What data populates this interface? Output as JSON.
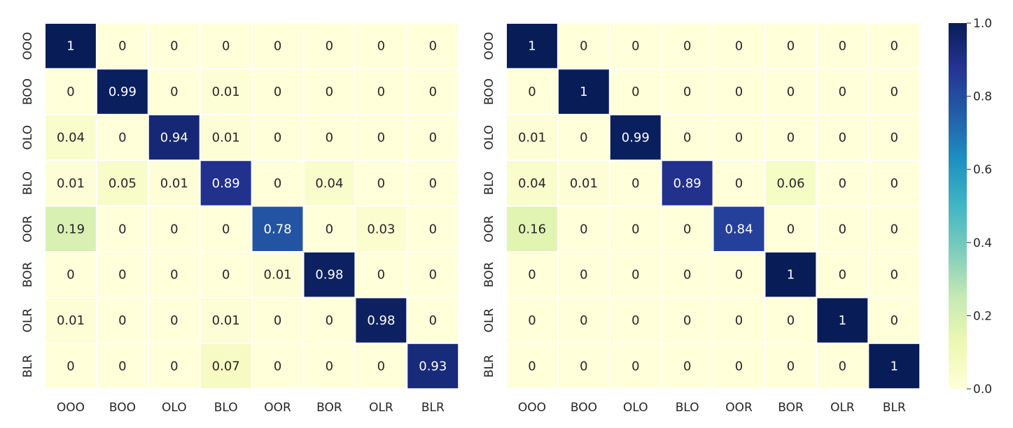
{
  "chart_data": [
    {
      "type": "heatmap",
      "x_categories": [
        "OOO",
        "BOO",
        "OLO",
        "BLO",
        "OOR",
        "BOR",
        "OLR",
        "BLR"
      ],
      "y_categories": [
        "OOO",
        "BOO",
        "OLO",
        "BLO",
        "OOR",
        "BOR",
        "OLR",
        "BLR"
      ],
      "matrix": [
        [
          1,
          0,
          0,
          0,
          0,
          0,
          0,
          0
        ],
        [
          0,
          0.99,
          0,
          0.01,
          0,
          0,
          0,
          0
        ],
        [
          0.04,
          0,
          0.94,
          0.01,
          0,
          0,
          0,
          0
        ],
        [
          0.01,
          0.05,
          0.01,
          0.89,
          0,
          0.04,
          0,
          0
        ],
        [
          0.19,
          0,
          0,
          0,
          0.78,
          0,
          0.03,
          0
        ],
        [
          0,
          0,
          0,
          0,
          0.01,
          0.98,
          0,
          0
        ],
        [
          0.01,
          0,
          0,
          0.01,
          0,
          0,
          0.98,
          0
        ],
        [
          0,
          0,
          0,
          0.07,
          0,
          0,
          0,
          0.93
        ]
      ],
      "vmin": 0,
      "vmax": 1,
      "colormap": "YlGnBu",
      "annotated": true
    },
    {
      "type": "heatmap",
      "x_categories": [
        "OOO",
        "BOO",
        "OLO",
        "BLO",
        "OOR",
        "BOR",
        "OLR",
        "BLR"
      ],
      "y_categories": [
        "OOO",
        "BOO",
        "OLO",
        "BLO",
        "OOR",
        "BOR",
        "OLR",
        "BLR"
      ],
      "matrix": [
        [
          1,
          0,
          0,
          0,
          0,
          0,
          0,
          0
        ],
        [
          0,
          1,
          0,
          0,
          0,
          0,
          0,
          0
        ],
        [
          0.01,
          0,
          0.99,
          0,
          0,
          0,
          0,
          0
        ],
        [
          0.04,
          0.01,
          0,
          0.89,
          0,
          0.06,
          0,
          0
        ],
        [
          0.16,
          0,
          0,
          0,
          0.84,
          0,
          0,
          0
        ],
        [
          0,
          0,
          0,
          0,
          0,
          1,
          0,
          0
        ],
        [
          0,
          0,
          0,
          0,
          0,
          0,
          1,
          0
        ],
        [
          0,
          0,
          0,
          0,
          0,
          0,
          0,
          1
        ]
      ],
      "vmin": 0,
      "vmax": 1,
      "colormap": "YlGnBu",
      "annotated": true
    }
  ],
  "colorbar": {
    "ticks": [
      "0.0",
      "0.2",
      "0.4",
      "0.6",
      "0.8",
      "1.0"
    ],
    "tick_values": [
      0,
      0.2,
      0.4,
      0.6,
      0.8,
      1.0
    ]
  },
  "colors": {
    "YlGnBu": [
      "#ffffd9",
      "#edf8b1",
      "#c7e9b4",
      "#7fcdbb",
      "#41b6c4",
      "#1d91c0",
      "#225ea8",
      "#253494",
      "#081d58"
    ],
    "grid_line": "#ffffff",
    "text_dark": "#262626",
    "text_light": "#ffffff"
  }
}
